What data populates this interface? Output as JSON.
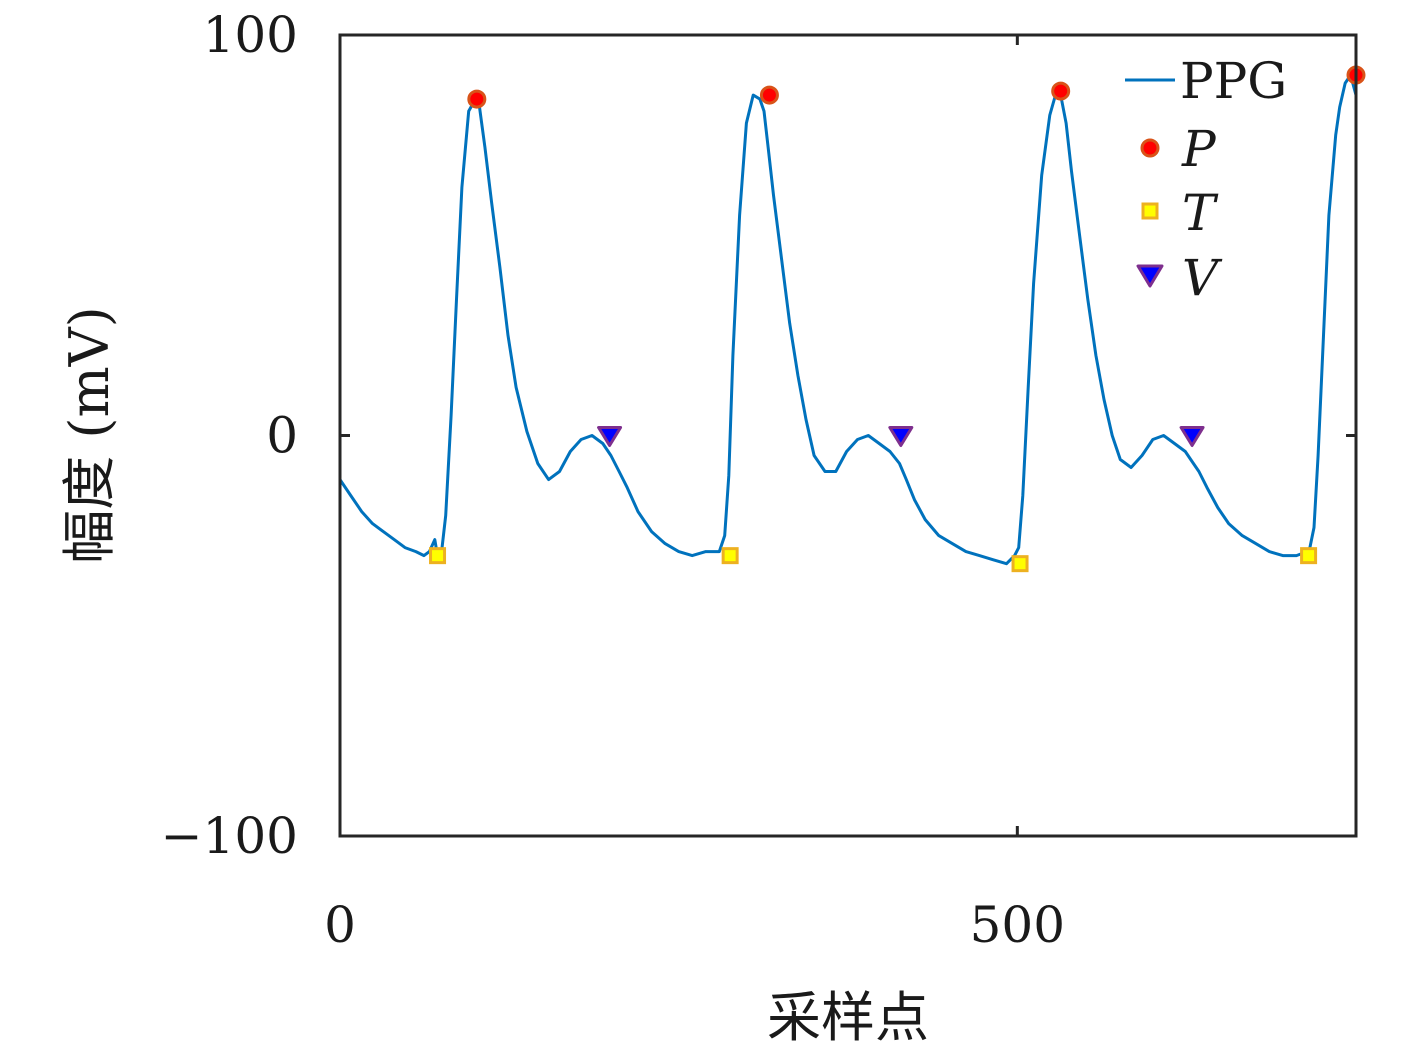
{
  "chart_data": {
    "type": "line",
    "xlabel": "采样点",
    "ylabel": "幅度 (mV)",
    "xlim": [
      0,
      750
    ],
    "ylim": [
      -100,
      100
    ],
    "x_ticks": [
      0,
      500
    ],
    "x_tick_labels": [
      "0",
      "500"
    ],
    "y_ticks": [
      -100,
      0,
      100
    ],
    "y_tick_labels": [
      "−100",
      "0",
      "100"
    ],
    "grid": false,
    "legend_position": "top-right",
    "colors": {
      "line": "#0072BD",
      "P": "#ff0000",
      "P_edge": "#d95319",
      "T": "#ffff00",
      "T_edge": "#edb120",
      "V": "#0000ff",
      "V_edge": "#7e2f8e"
    },
    "series": [
      {
        "name": "PPG",
        "kind": "line",
        "x": [
          0,
          8,
          16,
          24,
          32,
          40,
          48,
          56,
          62,
          66,
          70,
          72,
          75,
          78,
          82,
          86,
          90,
          95,
          100,
          103,
          107,
          112,
          118,
          124,
          130,
          138,
          146,
          154,
          162,
          170,
          178,
          186,
          194,
          200,
          206,
          212,
          220,
          230,
          240,
          250,
          260,
          270,
          280,
          284,
          287,
          290,
          295,
          300,
          305,
          310,
          313,
          316,
          320,
          326,
          332,
          338,
          344,
          350,
          358,
          366,
          374,
          382,
          390,
          398,
          406,
          413,
          418,
          424,
          432,
          442,
          452,
          462,
          472,
          482,
          492,
          498,
          501,
          504,
          508,
          512,
          518,
          524,
          529,
          532,
          536,
          540,
          546,
          552,
          558,
          564,
          570,
          576,
          584,
          592,
          600,
          608,
          616,
          624,
          628,
          634,
          640,
          648,
          656,
          666,
          676,
          686,
          696,
          706,
          714,
          716,
          719,
          722,
          726,
          730,
          735,
          738,
          742,
          746,
          750
        ],
        "y": [
          -11,
          -15,
          -19,
          -22,
          -24,
          -26,
          -28,
          -29,
          -30,
          -29,
          -26,
          -30,
          -29,
          -20,
          5,
          34,
          62,
          81,
          84,
          82,
          72,
          58,
          42,
          25,
          12,
          1,
          -7,
          -11,
          -9,
          -4,
          -1,
          0,
          -2,
          -5,
          -9,
          -13,
          -19,
          -24,
          -27,
          -29,
          -30,
          -29,
          -29,
          -25,
          -10,
          20,
          55,
          78,
          85,
          84,
          81,
          72,
          60,
          44,
          28,
          15,
          4,
          -5,
          -9,
          -9,
          -4,
          -1,
          0,
          -2,
          -4,
          -7,
          -11,
          -16,
          -21,
          -25,
          -27,
          -29,
          -30,
          -31,
          -32,
          -30,
          -28,
          -15,
          12,
          38,
          65,
          80,
          86,
          85,
          78,
          66,
          50,
          34,
          20,
          9,
          0,
          -6,
          -8,
          -5,
          -1,
          0,
          -2,
          -4,
          -6,
          -9,
          -13,
          -18,
          -22,
          -25,
          -27,
          -29,
          -30,
          -30,
          -29,
          -28,
          -23,
          -5,
          25,
          55,
          75,
          82,
          88,
          90,
          85
        ]
      },
      {
        "name": "P",
        "kind": "markers",
        "marker": "circle",
        "x": [
          101,
          317,
          532,
          750
        ],
        "y": [
          84,
          85,
          86,
          90
        ]
      },
      {
        "name": "T",
        "kind": "markers",
        "marker": "square",
        "x": [
          72,
          288,
          502,
          715
        ],
        "y": [
          -30,
          -30,
          -32,
          -30
        ]
      },
      {
        "name": "V",
        "kind": "markers",
        "marker": "triangle-down",
        "x": [
          199,
          414,
          629
        ],
        "y": [
          0,
          0,
          0
        ]
      }
    ]
  }
}
